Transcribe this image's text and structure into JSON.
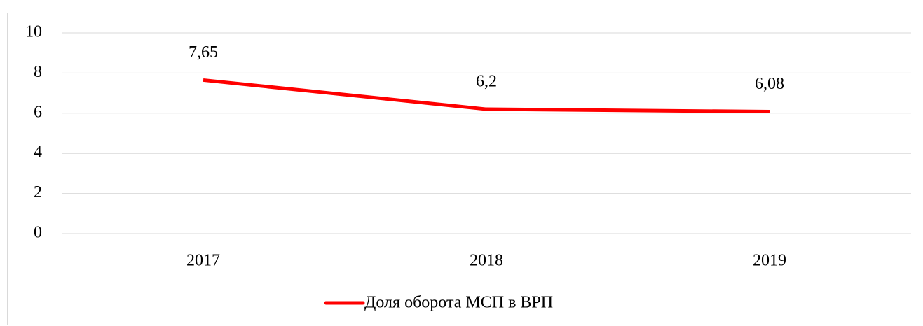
{
  "chart_data": {
    "type": "line",
    "categories": [
      "2017",
      "2018",
      "2019"
    ],
    "series": [
      {
        "name": "Доля оборота МСП в ВРП",
        "color": "#ff0000",
        "values": [
          7.65,
          6.2,
          6.08
        ],
        "value_labels": [
          "7,65",
          "6,2",
          "6,08"
        ]
      }
    ],
    "ylim": [
      0,
      10
    ],
    "yticks": [
      0,
      2,
      4,
      6,
      8,
      10
    ],
    "grid": true,
    "legend": "bottom"
  }
}
